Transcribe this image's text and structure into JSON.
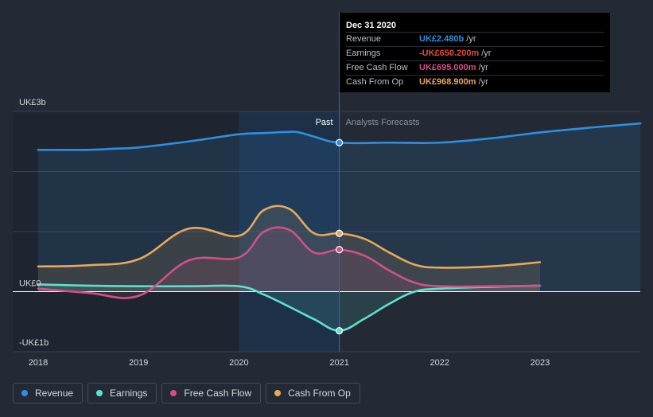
{
  "tooltip": {
    "date": "Dec 31 2020",
    "rows": [
      {
        "label": "Revenue",
        "value": "UK£2.480b",
        "unit": "/yr",
        "color": "#2e8fe0"
      },
      {
        "label": "Earnings",
        "value": "-UK£650.200m",
        "unit": "/yr",
        "color": "#e8453c"
      },
      {
        "label": "Free Cash Flow",
        "value": "UK£695.000m",
        "unit": "/yr",
        "color": "#d2508a"
      },
      {
        "label": "Cash From Op",
        "value": "UK£968.900m",
        "unit": "/yr",
        "color": "#e8a85a"
      }
    ]
  },
  "legend": [
    {
      "label": "Revenue",
      "color": "#2e8fe0"
    },
    {
      "label": "Earnings",
      "color": "#5ee0cf"
    },
    {
      "label": "Free Cash Flow",
      "color": "#d2508a"
    },
    {
      "label": "Cash From Op",
      "color": "#e8a85a"
    }
  ],
  "chart_data": {
    "type": "line",
    "y_tick_labels": [
      "UK£3b",
      "UK£0",
      "-UK£1b"
    ],
    "ylim": [
      -1.0,
      3.0
    ],
    "xlim": [
      2017.9,
      2024.0
    ],
    "x_tick_labels": [
      "2018",
      "2019",
      "2020",
      "2021",
      "2022",
      "2023"
    ],
    "x_ticks": [
      2018,
      2019,
      2020,
      2021,
      2022,
      2023
    ],
    "past_label": "Past",
    "forecast_label": "Analysts Forecasts",
    "divider_x": 2021.0,
    "highlight_range": [
      2020.0,
      2021.0
    ],
    "units": "UK£ billions",
    "series": [
      {
        "name": "Revenue",
        "color": "#2e8fe0",
        "points": [
          [
            2018.0,
            2.36
          ],
          [
            2018.5,
            2.36
          ],
          [
            2018.75,
            2.38
          ],
          [
            2019.0,
            2.4
          ],
          [
            2019.5,
            2.5
          ],
          [
            2020.0,
            2.62
          ],
          [
            2020.25,
            2.64
          ],
          [
            2020.5,
            2.66
          ],
          [
            2020.6,
            2.65
          ],
          [
            2020.75,
            2.58
          ],
          [
            2021.0,
            2.48
          ],
          [
            2021.5,
            2.48
          ],
          [
            2022.0,
            2.48
          ],
          [
            2022.5,
            2.55
          ],
          [
            2023.0,
            2.65
          ],
          [
            2023.5,
            2.73
          ],
          [
            2024.0,
            2.8
          ]
        ]
      },
      {
        "name": "Earnings",
        "color": "#5ee0cf",
        "points": [
          [
            2018.0,
            0.12
          ],
          [
            2018.5,
            0.1
          ],
          [
            2019.0,
            0.09
          ],
          [
            2019.5,
            0.09
          ],
          [
            2020.0,
            0.09
          ],
          [
            2020.25,
            -0.05
          ],
          [
            2020.5,
            -0.25
          ],
          [
            2020.75,
            -0.46
          ],
          [
            2021.0,
            -0.65
          ],
          [
            2021.25,
            -0.45
          ],
          [
            2021.5,
            -0.2
          ],
          [
            2021.75,
            0.0
          ],
          [
            2022.0,
            0.05
          ],
          [
            2022.5,
            0.08
          ],
          [
            2023.0,
            0.1
          ]
        ]
      },
      {
        "name": "Free Cash Flow",
        "color": "#d2508a",
        "points": [
          [
            2018.0,
            0.05
          ],
          [
            2018.5,
            -0.02
          ],
          [
            2019.0,
            -0.07
          ],
          [
            2019.5,
            0.52
          ],
          [
            2020.0,
            0.57
          ],
          [
            2020.25,
            1.0
          ],
          [
            2020.5,
            1.03
          ],
          [
            2020.75,
            0.65
          ],
          [
            2021.0,
            0.7
          ],
          [
            2021.25,
            0.6
          ],
          [
            2021.5,
            0.35
          ],
          [
            2021.75,
            0.15
          ],
          [
            2022.0,
            0.09
          ],
          [
            2022.5,
            0.09
          ],
          [
            2023.0,
            0.1
          ]
        ]
      },
      {
        "name": "Cash From Op",
        "color": "#e8a85a",
        "points": [
          [
            2018.0,
            0.42
          ],
          [
            2018.5,
            0.44
          ],
          [
            2019.0,
            0.54
          ],
          [
            2019.5,
            1.05
          ],
          [
            2020.0,
            0.93
          ],
          [
            2020.25,
            1.36
          ],
          [
            2020.5,
            1.38
          ],
          [
            2020.75,
            0.97
          ],
          [
            2021.0,
            0.97
          ],
          [
            2021.25,
            0.88
          ],
          [
            2021.5,
            0.65
          ],
          [
            2021.75,
            0.45
          ],
          [
            2022.0,
            0.4
          ],
          [
            2022.5,
            0.42
          ],
          [
            2023.0,
            0.49
          ]
        ]
      }
    ]
  }
}
